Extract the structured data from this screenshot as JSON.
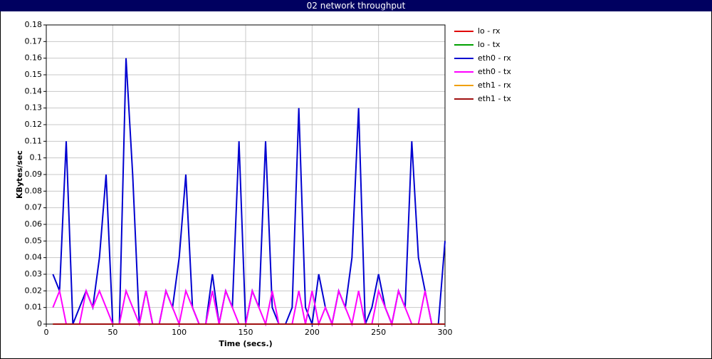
{
  "chart_data": {
    "type": "line",
    "title": "02 network throughput",
    "x_label": "Time (secs.)",
    "y_label": "KBytes/sec",
    "x": [
      5,
      10,
      15,
      20,
      25,
      30,
      35,
      40,
      45,
      50,
      55,
      60,
      65,
      70,
      75,
      80,
      85,
      90,
      95,
      100,
      105,
      110,
      115,
      120,
      125,
      130,
      135,
      140,
      145,
      150,
      155,
      160,
      165,
      170,
      175,
      180,
      185,
      190,
      195,
      200,
      205,
      210,
      215,
      220,
      225,
      230,
      235,
      240,
      245,
      250,
      255,
      260,
      265,
      270,
      275,
      280,
      285,
      290,
      295,
      300
    ],
    "xlim": [
      0,
      300
    ],
    "xticks": [
      0,
      50,
      100,
      150,
      200,
      250,
      300
    ],
    "ylim": [
      0,
      0.18
    ],
    "yticks": [
      0,
      0.01,
      0.02,
      0.03,
      0.04,
      0.05,
      0.06,
      0.07,
      0.08,
      0.09,
      0.1,
      0.11,
      0.12,
      0.13,
      0.14,
      0.15,
      0.16,
      0.17,
      0.18
    ],
    "grid": true,
    "legend": "right",
    "series": [
      {
        "name": "lo - rx",
        "color": "#e00000",
        "values": [
          0,
          0,
          0,
          0,
          0,
          0,
          0,
          0,
          0,
          0,
          0,
          0,
          0,
          0,
          0,
          0,
          0,
          0,
          0,
          0,
          0,
          0,
          0,
          0,
          0,
          0,
          0,
          0,
          0,
          0,
          0,
          0,
          0,
          0,
          0,
          0,
          0,
          0,
          0,
          0,
          0,
          0,
          0,
          0,
          0,
          0,
          0,
          0,
          0,
          0,
          0,
          0,
          0,
          0,
          0,
          0,
          0,
          0,
          0,
          0
        ]
      },
      {
        "name": "lo - tx",
        "color": "#00a000",
        "values": [
          0,
          0,
          0,
          0,
          0,
          0,
          0,
          0,
          0,
          0,
          0,
          0,
          0,
          0,
          0,
          0,
          0,
          0,
          0,
          0,
          0,
          0,
          0,
          0,
          0,
          0,
          0,
          0,
          0,
          0,
          0,
          0,
          0,
          0,
          0,
          0,
          0,
          0,
          0,
          0,
          0,
          0,
          0,
          0,
          0,
          0,
          0,
          0,
          0,
          0,
          0,
          0,
          0,
          0,
          0,
          0,
          0,
          0,
          0,
          0
        ]
      },
      {
        "name": "eth0 - rx",
        "color": "#0000d0",
        "values": [
          0.03,
          0.02,
          0.11,
          0,
          0.01,
          0.02,
          0.01,
          0.04,
          0.09,
          0,
          0,
          0.16,
          0.09,
          0,
          0.02,
          0,
          0,
          0.02,
          0.01,
          0.04,
          0.09,
          0.01,
          0,
          0,
          0.03,
          0,
          0.02,
          0.01,
          0.11,
          0,
          0.02,
          0.01,
          0.11,
          0.01,
          0,
          0,
          0.01,
          0.13,
          0.01,
          0,
          0.03,
          0.01,
          0,
          0.02,
          0.01,
          0.04,
          0.13,
          0,
          0.01,
          0.03,
          0.01,
          0,
          0.02,
          0.01,
          0.11,
          0.04,
          0.02,
          0,
          0,
          0.05
        ]
      },
      {
        "name": "eth0 - tx",
        "color": "#ff00ff",
        "values": [
          0.01,
          0.02,
          0,
          0,
          0,
          0.02,
          0.01,
          0.02,
          0.01,
          0,
          0,
          0.02,
          0.01,
          0,
          0.02,
          0,
          0,
          0.02,
          0.01,
          0,
          0.02,
          0.01,
          0,
          0,
          0.02,
          0,
          0.02,
          0.01,
          0,
          0,
          0.02,
          0.01,
          0,
          0.02,
          0,
          0,
          0,
          0.02,
          0,
          0.02,
          0,
          0.01,
          0,
          0.02,
          0.01,
          0,
          0.02,
          0,
          0,
          0.02,
          0.01,
          0,
          0.02,
          0.01,
          0,
          0,
          0.02,
          0,
          0,
          0
        ]
      },
      {
        "name": "eth1 - rx",
        "color": "#f0a000",
        "values": [
          0,
          0,
          0,
          0,
          0,
          0,
          0,
          0,
          0,
          0,
          0,
          0,
          0,
          0,
          0,
          0,
          0,
          0,
          0,
          0,
          0,
          0,
          0,
          0,
          0,
          0,
          0,
          0,
          0,
          0,
          0,
          0,
          0,
          0,
          0,
          0,
          0,
          0,
          0,
          0,
          0,
          0,
          0,
          0,
          0,
          0,
          0,
          0,
          0,
          0,
          0,
          0,
          0,
          0,
          0,
          0,
          0,
          0,
          0,
          0
        ]
      },
      {
        "name": "eth1 - tx",
        "color": "#a01010",
        "values": [
          0,
          0,
          0,
          0,
          0,
          0,
          0,
          0,
          0,
          0,
          0,
          0,
          0,
          0,
          0,
          0,
          0,
          0,
          0,
          0,
          0,
          0,
          0,
          0,
          0,
          0,
          0,
          0,
          0,
          0,
          0,
          0,
          0,
          0,
          0,
          0,
          0,
          0,
          0,
          0,
          0,
          0,
          0,
          0,
          0,
          0,
          0,
          0,
          0,
          0,
          0,
          0,
          0,
          0,
          0,
          0,
          0,
          0,
          0,
          0
        ]
      }
    ]
  }
}
